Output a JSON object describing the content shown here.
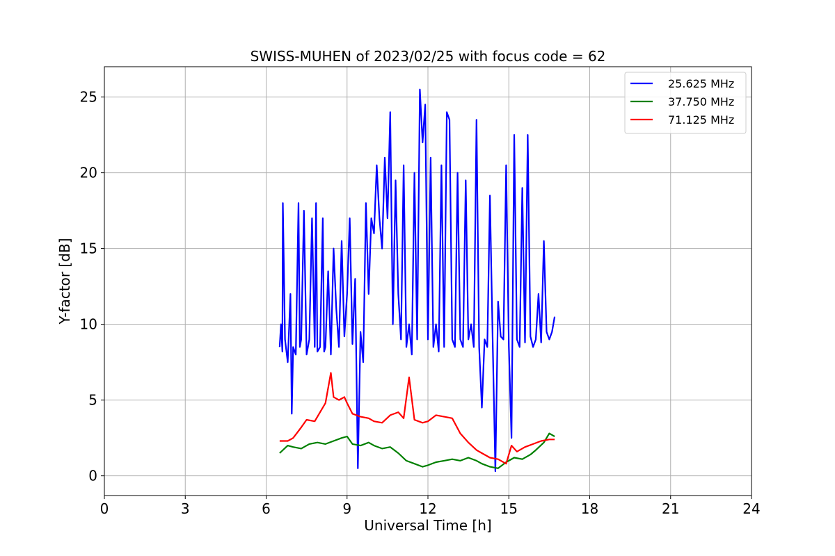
{
  "chart_data": {
    "type": "line",
    "title": "SWISS-MUHEN of 2023/02/25 with focus code = 62",
    "xlabel": "Universal Time [h]",
    "ylabel": "Y-factor [dB]",
    "xlim": [
      0,
      24
    ],
    "ylim": [
      -1.3,
      27
    ],
    "xticks": [
      0,
      3,
      6,
      9,
      12,
      15,
      18,
      21,
      24
    ],
    "yticks": [
      0,
      5,
      10,
      15,
      20,
      25
    ],
    "grid": true,
    "legend_position": "top-right",
    "series": [
      {
        "name": "25.625 MHz",
        "color": "#0000ff",
        "x": [
          6.5,
          6.55,
          6.6,
          6.62,
          6.7,
          6.8,
          6.9,
          6.95,
          7.0,
          7.1,
          7.2,
          7.25,
          7.3,
          7.4,
          7.5,
          7.6,
          7.7,
          7.8,
          7.85,
          7.9,
          8.0,
          8.1,
          8.15,
          8.2,
          8.3,
          8.4,
          8.5,
          8.6,
          8.7,
          8.8,
          8.9,
          9.0,
          9.1,
          9.2,
          9.3,
          9.4,
          9.5,
          9.6,
          9.7,
          9.8,
          9.9,
          10.0,
          10.1,
          10.2,
          10.3,
          10.4,
          10.5,
          10.6,
          10.7,
          10.8,
          10.9,
          11.0,
          11.1,
          11.2,
          11.3,
          11.4,
          11.5,
          11.6,
          11.7,
          11.8,
          11.9,
          12.0,
          12.1,
          12.2,
          12.3,
          12.4,
          12.5,
          12.6,
          12.7,
          12.8,
          12.9,
          13.0,
          13.1,
          13.2,
          13.3,
          13.4,
          13.5,
          13.6,
          13.7,
          13.8,
          13.9,
          14.0,
          14.1,
          14.2,
          14.3,
          14.4,
          14.5,
          14.6,
          14.7,
          14.8,
          14.9,
          15.0,
          15.1,
          15.2,
          15.3,
          15.4,
          15.5,
          15.6,
          15.7,
          15.8,
          15.9,
          16.0,
          16.1,
          16.2,
          16.3,
          16.4,
          16.5,
          16.6,
          16.7
        ],
        "values": [
          8.5,
          10,
          8.2,
          18,
          9,
          7.5,
          12,
          4.1,
          8.5,
          8,
          18,
          8.5,
          9,
          17.5,
          8,
          9,
          17,
          8.5,
          18,
          8.2,
          8.5,
          17,
          8.2,
          8.5,
          13.5,
          8,
          15,
          11,
          8.5,
          15.5,
          9.2,
          12,
          17,
          8.7,
          13,
          0.5,
          9.5,
          7.5,
          18,
          12,
          17,
          16,
          20.5,
          17,
          15,
          21,
          17,
          24,
          10,
          19.5,
          12,
          9,
          20.5,
          8.5,
          10,
          8,
          20,
          9,
          25.5,
          22,
          24.5,
          9,
          21,
          8.5,
          10,
          8.2,
          20.5,
          8.5,
          24,
          23.5,
          9,
          8.5,
          20,
          9,
          8.5,
          19.5,
          9,
          10,
          8.5,
          23.5,
          8.5,
          4.5,
          9,
          8.5,
          18.5,
          9,
          0.3,
          11.5,
          9.2,
          9,
          20.5,
          8.5,
          2.5,
          22.5,
          9,
          8.5,
          19,
          8.8,
          22.5,
          9.2,
          8.5,
          9,
          12,
          8.8,
          15.5,
          9.5,
          9,
          9.5,
          10.5
        ]
      },
      {
        "name": "37.750 MHz",
        "color": "#008000",
        "x": [
          6.5,
          6.8,
          7.0,
          7.3,
          7.6,
          7.9,
          8.2,
          8.5,
          8.8,
          9.0,
          9.2,
          9.5,
          9.8,
          10.0,
          10.3,
          10.6,
          10.9,
          11.2,
          11.5,
          11.8,
          12.0,
          12.3,
          12.6,
          12.9,
          13.2,
          13.5,
          13.8,
          14.0,
          14.3,
          14.6,
          14.9,
          15.2,
          15.5,
          15.8,
          16.0,
          16.3,
          16.5,
          16.7
        ],
        "values": [
          1.5,
          2.0,
          1.9,
          1.8,
          2.1,
          2.2,
          2.1,
          2.3,
          2.5,
          2.6,
          2.1,
          2.0,
          2.2,
          2.0,
          1.8,
          1.9,
          1.5,
          1.0,
          0.8,
          0.6,
          0.7,
          0.9,
          1.0,
          1.1,
          1.0,
          1.2,
          1.0,
          0.8,
          0.6,
          0.5,
          0.9,
          1.2,
          1.1,
          1.4,
          1.7,
          2.2,
          2.8,
          2.6
        ]
      },
      {
        "name": "71.125 MHz",
        "color": "#ff0000",
        "x": [
          6.5,
          6.8,
          7.0,
          7.3,
          7.5,
          7.8,
          8.0,
          8.2,
          8.4,
          8.5,
          8.7,
          8.9,
          9.0,
          9.2,
          9.5,
          9.8,
          10.0,
          10.3,
          10.6,
          10.9,
          11.1,
          11.3,
          11.5,
          11.8,
          12.0,
          12.3,
          12.6,
          12.9,
          13.2,
          13.5,
          13.8,
          14.0,
          14.3,
          14.6,
          14.9,
          15.1,
          15.3,
          15.6,
          15.9,
          16.2,
          16.5,
          16.7
        ],
        "values": [
          2.3,
          2.3,
          2.5,
          3.2,
          3.7,
          3.6,
          4.2,
          4.8,
          6.8,
          5.2,
          5.0,
          5.2,
          4.8,
          4.1,
          3.9,
          3.8,
          3.6,
          3.5,
          4.0,
          4.2,
          3.8,
          6.5,
          3.7,
          3.5,
          3.6,
          4.0,
          3.9,
          3.8,
          2.8,
          2.2,
          1.7,
          1.5,
          1.2,
          1.1,
          0.8,
          2.0,
          1.6,
          1.9,
          2.1,
          2.3,
          2.4,
          2.4
        ]
      }
    ]
  }
}
